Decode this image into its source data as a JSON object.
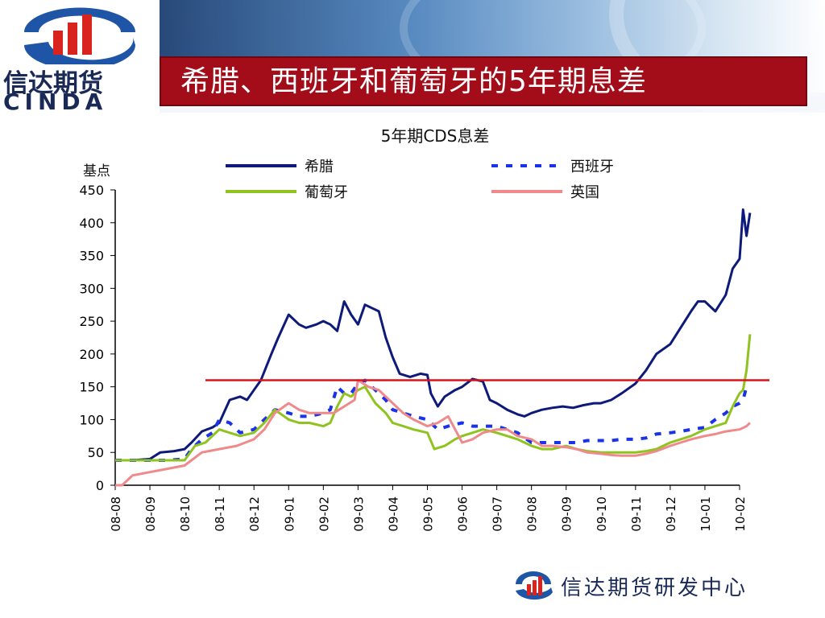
{
  "header": {
    "title": "希腊、西班牙和葡萄牙的5年期息差",
    "logo_cn": "信达期货",
    "logo_en": "CINDA"
  },
  "footer": {
    "text": "信达期货研发中心"
  },
  "colors": {
    "title_bg": "#a30d1a",
    "greece": "#0d1a7a",
    "spain": "#1a33e6",
    "portugal": "#8fc31f",
    "uk": "#f08a8a",
    "ref_line": "#d8141b"
  },
  "chart_data": {
    "type": "line",
    "title": "5年期CDS息差",
    "ylabel": "基点",
    "xlabel": "",
    "ylim": [
      0,
      450
    ],
    "yticks": [
      "0",
      "50",
      "100",
      "150",
      "200",
      "250",
      "300",
      "350",
      "400",
      "450"
    ],
    "categories": [
      "08-08",
      "08-09",
      "08-10",
      "08-11",
      "08-12",
      "09-01",
      "09-02",
      "09-03",
      "09-04",
      "09-05",
      "09-06",
      "09-07",
      "09-08",
      "09-09",
      "09-10",
      "09-11",
      "09-12",
      "10-01",
      "10-02"
    ],
    "reference_line": 160,
    "grid": false,
    "legend_position": "top",
    "series": [
      {
        "name": "希腊",
        "style": "solid",
        "color": "#0d1a7a",
        "x": [
          0,
          0.5,
          1,
          1.3,
          1.7,
          2,
          2.2,
          2.5,
          2.8,
          3,
          3.3,
          3.6,
          3.8,
          4,
          4.2,
          4.5,
          4.7,
          5,
          5.3,
          5.5,
          5.8,
          6,
          6.2,
          6.4,
          6.6,
          6.8,
          7,
          7.2,
          7.4,
          7.6,
          7.8,
          8,
          8.2,
          8.5,
          8.8,
          9,
          9.1,
          9.3,
          9.5,
          9.8,
          10,
          10.3,
          10.6,
          10.8,
          11,
          11.3,
          11.6,
          11.8,
          12,
          12.3,
          12.6,
          12.9,
          13.2,
          13.5,
          13.8,
          14,
          14.3,
          14.6,
          15,
          15.3,
          15.6,
          16,
          16.3,
          16.6,
          16.8,
          17,
          17.3,
          17.6,
          17.8,
          18,
          18.1,
          18.2,
          18.3
        ],
        "y": [
          38,
          38,
          40,
          50,
          52,
          55,
          65,
          82,
          88,
          95,
          130,
          135,
          130,
          145,
          160,
          200,
          225,
          260,
          245,
          240,
          245,
          250,
          245,
          235,
          280,
          260,
          245,
          275,
          270,
          265,
          225,
          195,
          170,
          165,
          170,
          168,
          140,
          120,
          135,
          145,
          150,
          162,
          158,
          130,
          125,
          115,
          108,
          105,
          110,
          115,
          118,
          120,
          118,
          122,
          125,
          125,
          130,
          140,
          155,
          175,
          200,
          215,
          240,
          265,
          280,
          280,
          265,
          290,
          330,
          345,
          420,
          380,
          415
        ]
      },
      {
        "name": "西班牙",
        "style": "dashed",
        "color": "#1a33e6",
        "x": [
          0,
          0.5,
          1,
          1.5,
          2,
          2.2,
          2.5,
          2.8,
          3,
          3.3,
          3.6,
          4,
          4.3,
          4.6,
          5,
          5.3,
          5.6,
          6,
          6.2,
          6.4,
          6.6,
          6.8,
          7,
          7.2,
          7.4,
          7.6,
          7.8,
          8,
          8.3,
          8.6,
          9,
          9.3,
          9.6,
          10,
          10.3,
          10.6,
          11,
          11.3,
          11.6,
          12,
          12.3,
          12.6,
          13,
          13.3,
          13.6,
          14,
          14.3,
          14.6,
          15,
          15.3,
          15.6,
          16,
          16.3,
          16.6,
          17,
          17.3,
          17.6,
          17.8,
          18,
          18.1,
          18.2
        ],
        "y": [
          38,
          38,
          38,
          38,
          40,
          55,
          70,
          80,
          100,
          95,
          80,
          85,
          100,
          115,
          110,
          105,
          105,
          110,
          115,
          150,
          140,
          140,
          155,
          160,
          150,
          140,
          130,
          115,
          110,
          105,
          100,
          85,
          90,
          95,
          90,
          90,
          90,
          85,
          80,
          65,
          65,
          65,
          65,
          65,
          68,
          68,
          68,
          70,
          70,
          72,
          78,
          80,
          82,
          85,
          88,
          100,
          110,
          120,
          125,
          130,
          150
        ]
      },
      {
        "name": "葡萄牙",
        "style": "solid",
        "color": "#8fc31f",
        "x": [
          0,
          0.5,
          1,
          1.5,
          2,
          2.3,
          2.6,
          3,
          3.3,
          3.6,
          4,
          4.3,
          4.6,
          5,
          5.3,
          5.6,
          6,
          6.2,
          6.4,
          6.6,
          6.8,
          7,
          7.2,
          7.5,
          7.8,
          8,
          8.3,
          8.6,
          9,
          9.2,
          9.5,
          9.8,
          10,
          10.3,
          10.6,
          11,
          11.3,
          11.6,
          12,
          12.3,
          12.6,
          13,
          13.3,
          13.6,
          14,
          14.3,
          14.6,
          15,
          15.3,
          15.6,
          16,
          16.3,
          16.6,
          17,
          17.3,
          17.6,
          17.8,
          18,
          18.1,
          18.2,
          18.3
        ],
        "y": [
          38,
          38,
          38,
          38,
          38,
          60,
          65,
          85,
          80,
          75,
          80,
          95,
          115,
          100,
          95,
          95,
          90,
          95,
          120,
          140,
          135,
          145,
          150,
          125,
          110,
          95,
          90,
          85,
          80,
          55,
          60,
          70,
          75,
          80,
          85,
          80,
          75,
          70,
          60,
          55,
          55,
          60,
          55,
          52,
          50,
          50,
          50,
          50,
          52,
          55,
          65,
          70,
          75,
          85,
          90,
          95,
          120,
          140,
          145,
          175,
          230
        ]
      },
      {
        "name": "英国",
        "style": "solid",
        "color": "#f08a8a",
        "x": [
          0,
          0.2,
          0.5,
          1,
          1.5,
          2,
          2.5,
          3,
          3.5,
          4,
          4.3,
          4.6,
          5,
          5.3,
          5.6,
          6,
          6.3,
          6.6,
          6.9,
          7,
          7.3,
          7.6,
          8,
          8.3,
          8.6,
          9,
          9.3,
          9.6,
          10,
          10.3,
          10.6,
          11,
          11.3,
          11.6,
          12,
          12.3,
          12.6,
          13,
          13.3,
          13.6,
          14,
          14.3,
          14.6,
          15,
          15.3,
          15.6,
          16,
          16.3,
          16.6,
          17,
          17.3,
          17.6,
          18,
          18.2,
          18.3
        ],
        "y": [
          0,
          0,
          15,
          20,
          25,
          30,
          50,
          55,
          60,
          70,
          85,
          110,
          125,
          115,
          110,
          110,
          110,
          120,
          130,
          160,
          150,
          145,
          125,
          110,
          100,
          90,
          95,
          105,
          65,
          70,
          80,
          85,
          85,
          75,
          70,
          60,
          60,
          58,
          55,
          50,
          48,
          46,
          45,
          45,
          48,
          52,
          60,
          65,
          70,
          75,
          78,
          82,
          85,
          90,
          95
        ]
      }
    ]
  }
}
